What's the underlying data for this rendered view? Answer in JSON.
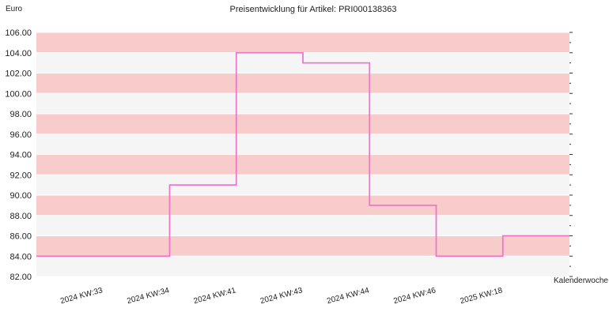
{
  "chart_data": {
    "type": "line",
    "step": true,
    "title": "Preisentwicklung für Artikel: PRI000138363",
    "ylabel": "Euro",
    "xlabel": "Kalenderwoche",
    "categories": [
      "2024 KW:33",
      "2024 KW:34",
      "2024 KW:41",
      "2024 KW:43",
      "2024 KW:44",
      "2024 KW:46",
      "2025 KW:18"
    ],
    "series": [
      {
        "values": [
          84.0,
          91.0,
          104.0,
          103.0,
          89.0,
          84.0,
          86.0
        ]
      }
    ],
    "ylim": [
      82,
      106
    ],
    "yticks": [
      "82.00",
      "84.00",
      "86.00",
      "88.00",
      "90.00",
      "92.00",
      "94.00",
      "96.00",
      "98.00",
      "100.00",
      "102.00",
      "104.00",
      "106.00"
    ],
    "grid": true,
    "colors": {
      "line": "#ee77cc",
      "band_alt": "#f9cccc",
      "band_light": "#f5f5f5",
      "grid": "#ffffff"
    }
  }
}
